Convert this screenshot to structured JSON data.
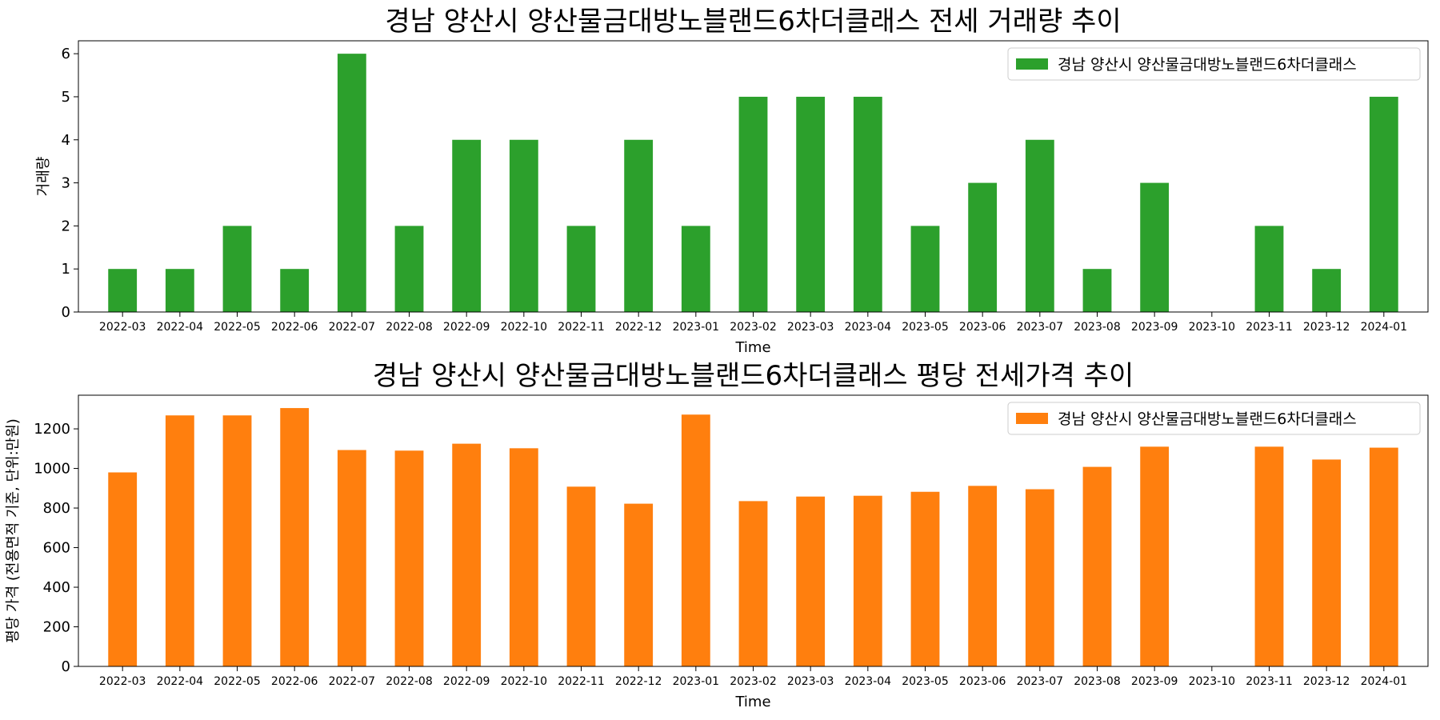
{
  "chart_data": [
    {
      "type": "bar",
      "title": "경남 양산시 양산물금대방노블랜드6차더클래스 전세 거래량 추이",
      "xlabel": "Time",
      "ylabel": "거래량",
      "categories": [
        "2022-03",
        "2022-04",
        "2022-05",
        "2022-06",
        "2022-07",
        "2022-08",
        "2022-09",
        "2022-10",
        "2022-11",
        "2022-12",
        "2023-01",
        "2023-02",
        "2023-03",
        "2023-04",
        "2023-05",
        "2023-06",
        "2023-07",
        "2023-08",
        "2023-09",
        "2023-10",
        "2023-11",
        "2023-12",
        "2024-01"
      ],
      "series": [
        {
          "name": "경남 양산시 양산물금대방노블랜드6차더클래스",
          "color": "#2ca02c",
          "values": [
            1,
            1,
            2,
            1,
            6,
            2,
            4,
            4,
            2,
            4,
            2,
            5,
            5,
            5,
            2,
            3,
            4,
            1,
            3,
            0,
            2,
            1,
            5
          ]
        }
      ],
      "ylim": [
        0,
        6.3
      ],
      "yticks": [
        0,
        1,
        2,
        3,
        4,
        5,
        6
      ],
      "grid": false,
      "legend": "top-right"
    },
    {
      "type": "bar",
      "title": "경남 양산시 양산물금대방노블랜드6차더클래스 평당 전세가격 추이",
      "xlabel": "Time",
      "ylabel": "평당 가격 (전용면적 기준, 단위:만원)",
      "categories": [
        "2022-03",
        "2022-04",
        "2022-05",
        "2022-06",
        "2022-07",
        "2022-08",
        "2022-09",
        "2022-10",
        "2022-11",
        "2022-12",
        "2023-01",
        "2023-02",
        "2023-03",
        "2023-04",
        "2023-05",
        "2023-06",
        "2023-07",
        "2023-08",
        "2023-09",
        "2023-10",
        "2023-11",
        "2023-12",
        "2024-01"
      ],
      "series": [
        {
          "name": "경남 양산시 양산물금대방노블랜드6차더클래스",
          "color": "#ff7f0e",
          "values": [
            980,
            1268,
            1268,
            1305,
            1093,
            1090,
            1125,
            1102,
            908,
            822,
            1272,
            835,
            858,
            862,
            882,
            912,
            895,
            1008,
            1110,
            0,
            1110,
            1045,
            1105
          ]
        }
      ],
      "ylim": [
        0,
        1370
      ],
      "yticks": [
        0,
        200,
        400,
        600,
        800,
        1000,
        1200
      ],
      "grid": false,
      "legend": "top-right"
    }
  ]
}
